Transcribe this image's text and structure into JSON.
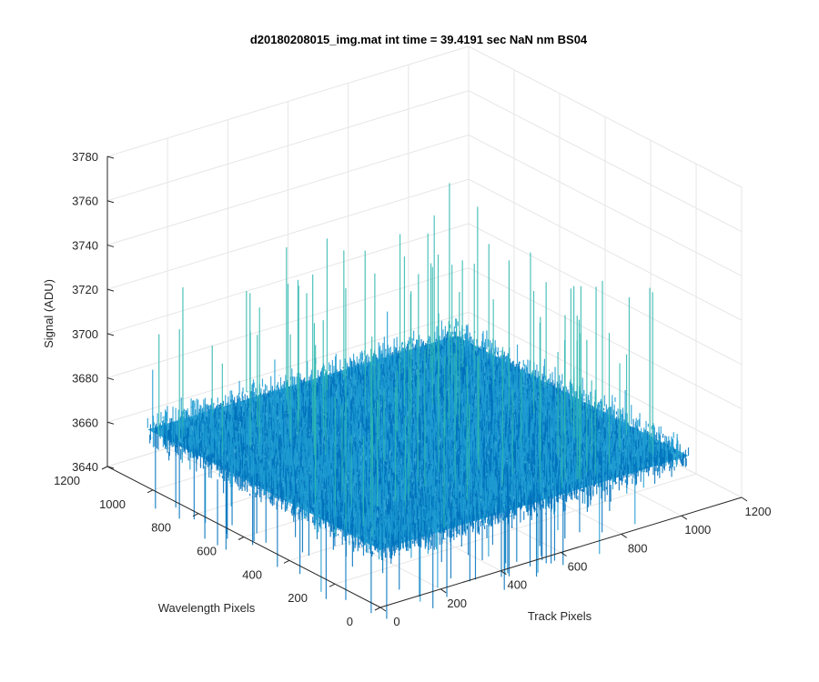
{
  "chart_data": {
    "type": "surface",
    "title": "d20180208015_img.mat int time = 39.4191 sec  NaN nm BS04",
    "xlabel": "Track Pixels",
    "ylabel": "Wavelength Pixels",
    "zlabel": "Signal (ADU)",
    "xlim": [
      0,
      1200
    ],
    "ylim": [
      0,
      1200
    ],
    "zlim": [
      3640,
      3780
    ],
    "x_ticks": [
      "0",
      "200",
      "400",
      "600",
      "800",
      "1000",
      "1200"
    ],
    "y_ticks": [
      "0",
      "200",
      "400",
      "600",
      "800",
      "1000",
      "1200"
    ],
    "z_ticks": [
      "3640",
      "3660",
      "3680",
      "3700",
      "3720",
      "3740",
      "3760",
      "3780"
    ],
    "grid": true,
    "colormap": "parula",
    "surface": {
      "x_range": [
        1,
        1024
      ],
      "y_range": [
        1,
        1024
      ],
      "mean": 3666,
      "noise_min": 3630,
      "noise_max": 3745
    },
    "colors": {
      "surface_low": "#0072bd",
      "surface_mid": "#1e9cd2",
      "surface_high": "#2fb8b0",
      "grid": "#e6e6e6",
      "axis": "#262626"
    }
  }
}
